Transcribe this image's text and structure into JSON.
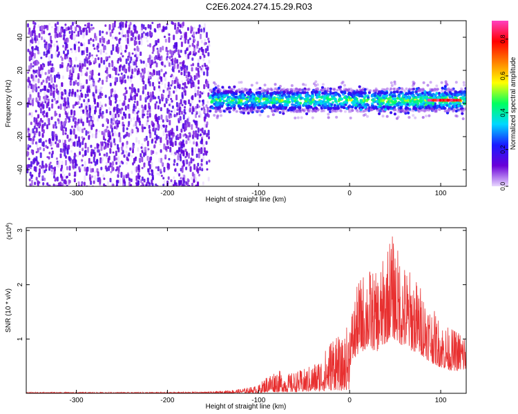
{
  "title": "C2E6.2024.274.15.29.R03",
  "chart_data": [
    {
      "type": "heatmap",
      "xlabel": "Height of straight line (km)",
      "ylabel": "Frequency (Hz)",
      "xlim": [
        -355,
        128
      ],
      "ylim": [
        -50,
        50
      ],
      "xticks": [
        -300,
        -200,
        -100,
        0,
        100
      ],
      "yticks": [
        -40,
        -20,
        0,
        20,
        40
      ],
      "noise_region_x": [
        -355,
        -155
      ],
      "signal_band": {
        "x": [
          -155,
          128
        ],
        "center_hz": 2,
        "half_width_hz": 7
      },
      "colorbar": {
        "label": "Normalized spectral amplitude",
        "range": [
          0.0,
          0.9
        ],
        "ticks": [
          0.0,
          0.2,
          0.4,
          0.6,
          0.8
        ],
        "colors": [
          "#e8d8ff",
          "#6a00d8",
          "#1a1aff",
          "#00d8ff",
          "#00ff60",
          "#ffff00",
          "#ff8000",
          "#ff0000",
          "#ff40c0"
        ]
      }
    },
    {
      "type": "line",
      "xlabel": "Height of straight line (km)",
      "ylabel": "SNR (10 * v/v)",
      "scale_label": "(x10",
      "scale_exponent": "4",
      "scale_close": ")",
      "xlim": [
        -355,
        128
      ],
      "ylim": [
        0,
        3.05
      ],
      "xticks": [
        -300,
        -200,
        -100,
        0,
        100
      ],
      "yticks": [
        1,
        2,
        3
      ],
      "color": "#e83030",
      "envelope": [
        {
          "x": -355,
          "y": 0.02
        },
        {
          "x": -200,
          "y": 0.02
        },
        {
          "x": -150,
          "y": 0.03
        },
        {
          "x": -120,
          "y": 0.08
        },
        {
          "x": -100,
          "y": 0.15
        },
        {
          "x": -90,
          "y": 0.35
        },
        {
          "x": -80,
          "y": 0.45
        },
        {
          "x": -70,
          "y": 0.35
        },
        {
          "x": -60,
          "y": 0.4
        },
        {
          "x": -50,
          "y": 0.45
        },
        {
          "x": -40,
          "y": 0.55
        },
        {
          "x": -30,
          "y": 0.7
        },
        {
          "x": -20,
          "y": 1.05
        },
        {
          "x": -15,
          "y": 1.3
        },
        {
          "x": -10,
          "y": 0.9
        },
        {
          "x": 0,
          "y": 1.4
        },
        {
          "x": 10,
          "y": 2.1
        },
        {
          "x": 20,
          "y": 2.35
        },
        {
          "x": 30,
          "y": 2.2
        },
        {
          "x": 40,
          "y": 2.6
        },
        {
          "x": 45,
          "y": 3.0
        },
        {
          "x": 60,
          "y": 2.4
        },
        {
          "x": 70,
          "y": 2.2
        },
        {
          "x": 80,
          "y": 1.95
        },
        {
          "x": 90,
          "y": 1.6
        },
        {
          "x": 100,
          "y": 1.35
        },
        {
          "x": 110,
          "y": 1.2
        },
        {
          "x": 128,
          "y": 1.15
        }
      ]
    }
  ]
}
